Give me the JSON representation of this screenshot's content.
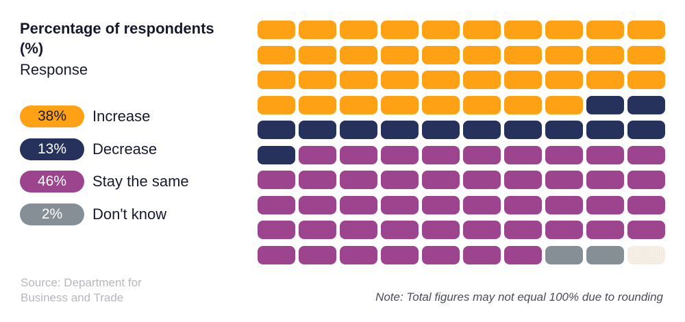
{
  "chart_data": {
    "type": "waffle",
    "title": "Percentage of respondents (%)",
    "subtitle": "Response",
    "grid": {
      "rows": 10,
      "columns": 10
    },
    "categories": [
      "Increase",
      "Decrease",
      "Stay the same",
      "Don't know"
    ],
    "values": [
      38,
      13,
      46,
      2
    ],
    "colors": [
      "#ffa114",
      "#26325c",
      "#9c448e",
      "#858f95"
    ],
    "unallocated_cells": 1,
    "source": "Source: Department for Business and Trade",
    "note": "Note: Total figures may not equal 100% due to rounding"
  },
  "header": {
    "title": "Percentage of respondents (%)",
    "subtitle": "Response"
  },
  "legend": [
    {
      "value": "38%",
      "label": "Increase",
      "color": "#ffa114",
      "text_color": "#171a2e"
    },
    {
      "value": "13%",
      "label": "Decrease",
      "color": "#26325c",
      "text_color": "#ffffff"
    },
    {
      "value": "46%",
      "label": "Stay the same",
      "color": "#9c448e",
      "text_color": "#ffffff"
    },
    {
      "value": "2%",
      "label": "Don't know",
      "color": "#858f95",
      "text_color": "#ffffff"
    }
  ],
  "footer": {
    "source_line1": "Source: Department for",
    "source_line2": "Business and Trade",
    "note": "Note: Total figures may not equal 100% due to rounding"
  }
}
